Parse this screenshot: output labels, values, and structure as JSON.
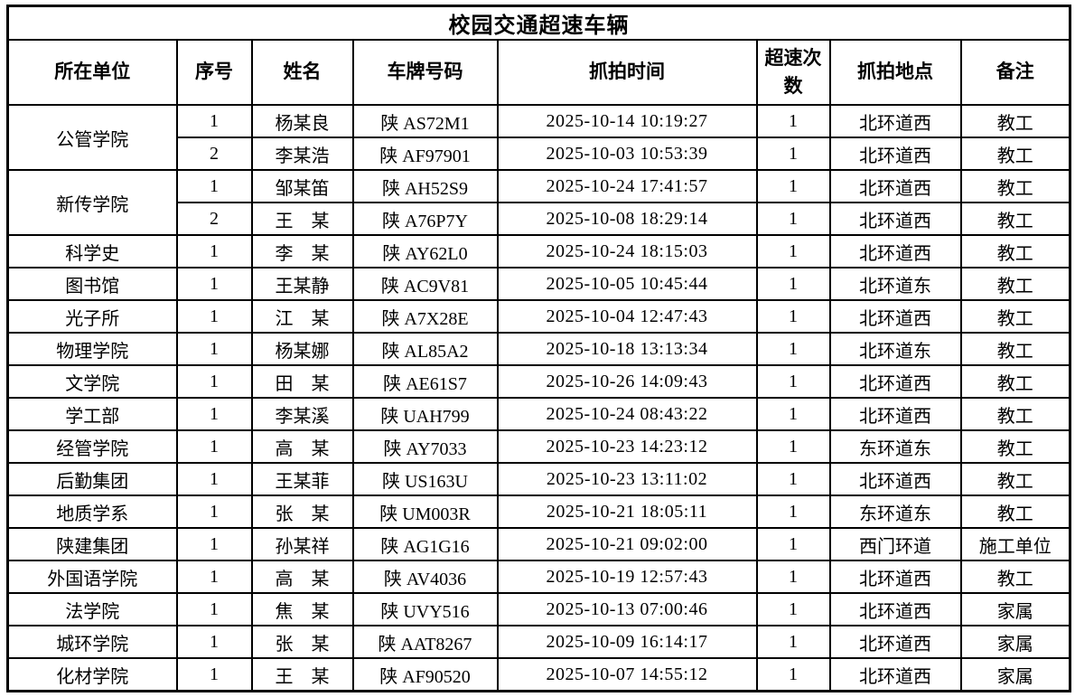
{
  "title": "校园交通超速车辆",
  "columns": [
    "所在单位",
    "序号",
    "姓名",
    "车牌号码",
    "抓拍时间",
    "超速次数",
    "抓拍地点",
    "备注"
  ],
  "rows": [
    {
      "unit": "公管学院",
      "unit_rowspan": 2,
      "no": "1",
      "name": "杨某良",
      "plate": "陕 AS72M1",
      "time": "2025-10-14 10:19:27",
      "count": "1",
      "location": "北环道西",
      "remark": "教工"
    },
    {
      "unit": null,
      "unit_rowspan": 0,
      "no": "2",
      "name": "李某浩",
      "plate": "陕 AF97901",
      "time": "2025-10-03 10:53:39",
      "count": "1",
      "location": "北环道西",
      "remark": "教工"
    },
    {
      "unit": "新传学院",
      "unit_rowspan": 2,
      "no": "1",
      "name": "邹某笛",
      "plate": "陕 AH52S9",
      "time": "2025-10-24 17:41:57",
      "count": "1",
      "location": "北环道西",
      "remark": "教工"
    },
    {
      "unit": null,
      "unit_rowspan": 0,
      "no": "2",
      "name": "王　某",
      "plate": "陕 A76P7Y",
      "time": "2025-10-08 18:29:14",
      "count": "1",
      "location": "北环道西",
      "remark": "教工"
    },
    {
      "unit": "科学史",
      "unit_rowspan": 1,
      "no": "1",
      "name": "李　某",
      "plate": "陕 AY62L0",
      "time": "2025-10-24 18:15:03",
      "count": "1",
      "location": "北环道西",
      "remark": "教工"
    },
    {
      "unit": "图书馆",
      "unit_rowspan": 1,
      "no": "1",
      "name": "王某静",
      "plate": "陕 AC9V81",
      "time": "2025-10-05 10:45:44",
      "count": "1",
      "location": "北环道东",
      "remark": "教工"
    },
    {
      "unit": "光子所",
      "unit_rowspan": 1,
      "no": "1",
      "name": "江　某",
      "plate": "陕 A7X28E",
      "time": "2025-10-04 12:47:43",
      "count": "1",
      "location": "北环道西",
      "remark": "教工"
    },
    {
      "unit": "物理学院",
      "unit_rowspan": 1,
      "no": "1",
      "name": "杨某娜",
      "plate": "陕 AL85A2",
      "time": "2025-10-18 13:13:34",
      "count": "1",
      "location": "北环道东",
      "remark": "教工"
    },
    {
      "unit": "文学院",
      "unit_rowspan": 1,
      "no": "1",
      "name": "田　某",
      "plate": "陕 AE61S7",
      "time": "2025-10-26 14:09:43",
      "count": "1",
      "location": "北环道西",
      "remark": "教工"
    },
    {
      "unit": "学工部",
      "unit_rowspan": 1,
      "no": "1",
      "name": "李某溪",
      "plate": "陕 UAH799",
      "time": "2025-10-24 08:43:22",
      "count": "1",
      "location": "北环道西",
      "remark": "教工"
    },
    {
      "unit": "经管学院",
      "unit_rowspan": 1,
      "no": "1",
      "name": "高　某",
      "plate": "陕 AY7033",
      "time": "2025-10-23 14:23:12",
      "count": "1",
      "location": "东环道东",
      "remark": "教工"
    },
    {
      "unit": "后勤集团",
      "unit_rowspan": 1,
      "no": "1",
      "name": "王某菲",
      "plate": "陕 US163U",
      "time": "2025-10-23 13:11:02",
      "count": "1",
      "location": "北环道西",
      "remark": "教工"
    },
    {
      "unit": "地质学系",
      "unit_rowspan": 1,
      "no": "1",
      "name": "张　某",
      "plate": "陕 UM003R",
      "time": "2025-10-21 18:05:11",
      "count": "1",
      "location": "东环道东",
      "remark": "教工"
    },
    {
      "unit": "陕建集团",
      "unit_rowspan": 1,
      "no": "1",
      "name": "孙某祥",
      "plate": "陕 AG1G16",
      "time": "2025-10-21 09:02:00",
      "count": "1",
      "location": "西门环道",
      "remark": "施工单位"
    },
    {
      "unit": "外国语学院",
      "unit_rowspan": 1,
      "no": "1",
      "name": "高　某",
      "plate": "陕 AV4036",
      "time": "2025-10-19 12:57:43",
      "count": "1",
      "location": "北环道西",
      "remark": "教工"
    },
    {
      "unit": "法学院",
      "unit_rowspan": 1,
      "no": "1",
      "name": "焦　某",
      "plate": "陕 UVY516",
      "time": "2025-10-13 07:00:46",
      "count": "1",
      "location": "北环道西",
      "remark": "家属"
    },
    {
      "unit": "城环学院",
      "unit_rowspan": 1,
      "no": "1",
      "name": "张　某",
      "plate": "陕 AAT8267",
      "time": "2025-10-09 16:14:17",
      "count": "1",
      "location": "北环道西",
      "remark": "家属"
    },
    {
      "unit": "化材学院",
      "unit_rowspan": 1,
      "no": "1",
      "name": "王　某",
      "plate": "陕 AF90520",
      "time": "2025-10-07 14:55:12",
      "count": "1",
      "location": "北环道西",
      "remark": "家属"
    }
  ]
}
